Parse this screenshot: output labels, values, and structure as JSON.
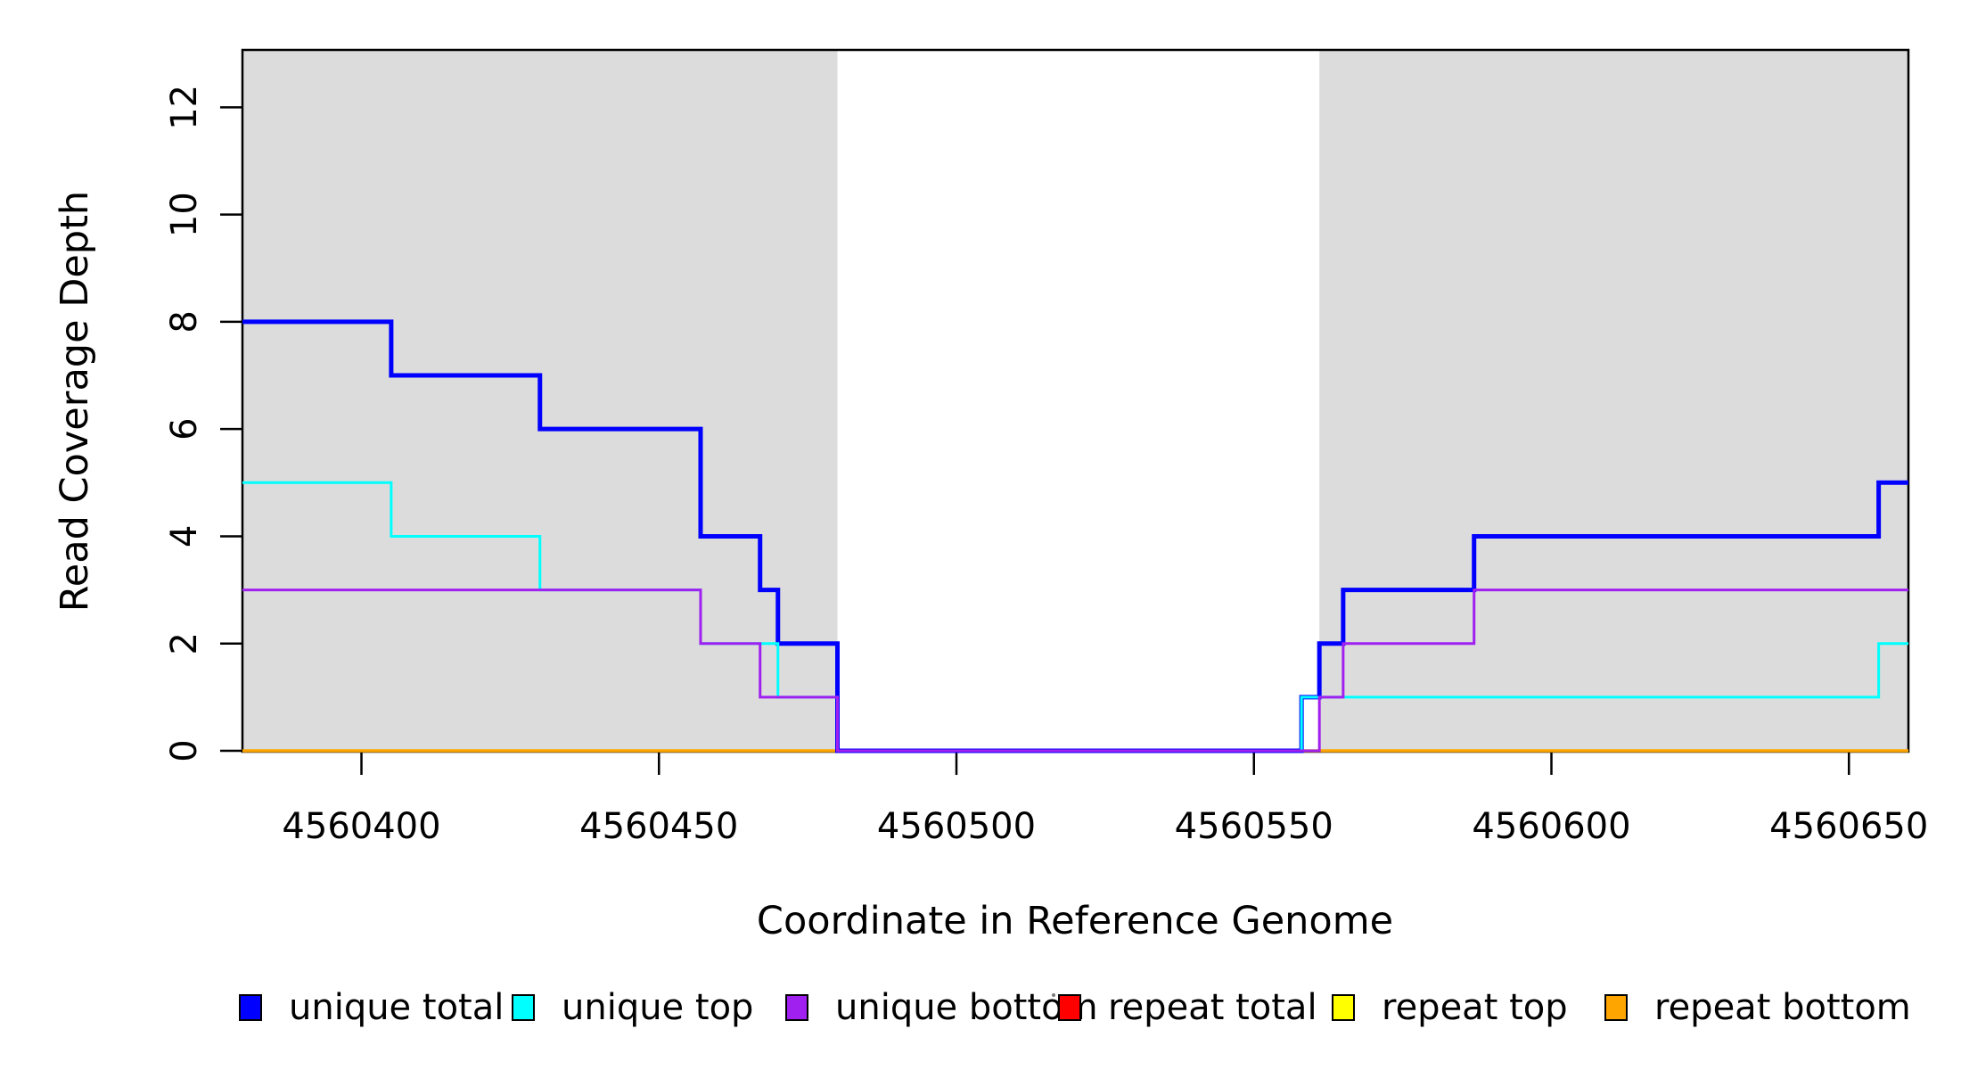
{
  "chart_data": {
    "type": "line",
    "subtype": "step",
    "title": "",
    "xlabel": "Coordinate in Reference Genome",
    "ylabel": "Read Coverage Depth",
    "xlim": [
      4560380,
      4560660
    ],
    "ylim": [
      0,
      13.07
    ],
    "x_ticks": [
      4560400,
      4560450,
      4560500,
      4560550,
      4560600,
      4560650
    ],
    "y_ticks": [
      0,
      2,
      4,
      6,
      8,
      10,
      12
    ],
    "grid": false,
    "legend_position": "bottom",
    "background_color": "#FFFFFF",
    "shaded_color": "#DCDCDC",
    "shaded_regions": [
      {
        "x_from": 4560380,
        "x_to": 4560480
      },
      {
        "x_from": 4560561,
        "x_to": 4560660
      }
    ],
    "series": [
      {
        "name": "unique total",
        "color": "#0000FF",
        "line_width": 5,
        "draw_order": 4,
        "steps": [
          [
            4560380,
            8
          ],
          [
            4560405,
            7
          ],
          [
            4560430,
            6
          ],
          [
            4560457,
            4
          ],
          [
            4560467,
            3
          ],
          [
            4560470,
            2
          ],
          [
            4560480,
            0
          ],
          [
            4560558,
            1
          ],
          [
            4560561,
            2
          ],
          [
            4560565,
            3
          ],
          [
            4560587,
            4
          ],
          [
            4560655,
            5
          ]
        ]
      },
      {
        "name": "unique top",
        "color": "#00FFFF",
        "line_width": 3,
        "draw_order": 5,
        "steps": [
          [
            4560380,
            5
          ],
          [
            4560405,
            4
          ],
          [
            4560430,
            3
          ],
          [
            4560457,
            2
          ],
          [
            4560470,
            1
          ],
          [
            4560480,
            0
          ],
          [
            4560558,
            1
          ],
          [
            4560655,
            2
          ]
        ]
      },
      {
        "name": "unique bottom",
        "color": "#A020F0",
        "line_width": 3,
        "draw_order": 6,
        "steps": [
          [
            4560380,
            3
          ],
          [
            4560457,
            2
          ],
          [
            4560467,
            1
          ],
          [
            4560480,
            0
          ],
          [
            4560561,
            1
          ],
          [
            4560565,
            2
          ],
          [
            4560587,
            3
          ]
        ]
      },
      {
        "name": "repeat total",
        "color": "#FF0000",
        "line_width": 3,
        "draw_order": 1,
        "steps": [
          [
            4560380,
            0
          ]
        ]
      },
      {
        "name": "repeat top",
        "color": "#FFFF00",
        "line_width": 3,
        "draw_order": 2,
        "steps": [
          [
            4560380,
            0
          ]
        ]
      },
      {
        "name": "repeat bottom",
        "color": "#FFA500",
        "line_width": 3.5,
        "draw_order": 3,
        "steps": [
          [
            4560380,
            0
          ]
        ]
      }
    ]
  }
}
